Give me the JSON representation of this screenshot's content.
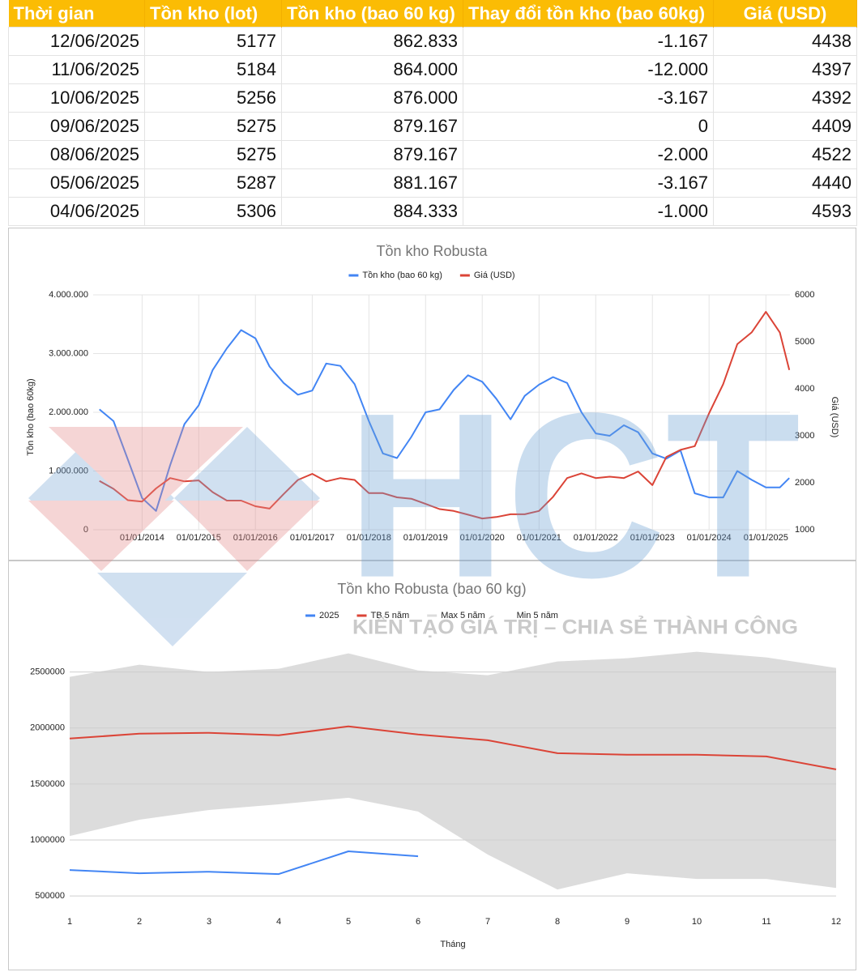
{
  "table": {
    "columns": [
      "Thời gian",
      "Tồn kho (lot)",
      "Tồn kho (bao 60 kg)",
      "Thay đổi tồn kho (bao 60kg)",
      "Giá (USD)"
    ],
    "rows": [
      [
        "12/06/2025",
        "5177",
        "862.833",
        "-1.167",
        "4438"
      ],
      [
        "11/06/2025",
        "5184",
        "864.000",
        "-12.000",
        "4397"
      ],
      [
        "10/06/2025",
        "5256",
        "876.000",
        "-3.167",
        "4392"
      ],
      [
        "09/06/2025",
        "5275",
        "879.167",
        "0",
        "4409"
      ],
      [
        "08/06/2025",
        "5275",
        "879.167",
        "-2.000",
        "4522"
      ],
      [
        "05/06/2025",
        "5287",
        "881.167",
        "-3.167",
        "4440"
      ],
      [
        "04/06/2025",
        "5306",
        "884.333",
        "-1.000",
        "4593"
      ]
    ]
  },
  "chart_data": [
    {
      "type": "line",
      "title": "Tồn kho Robusta",
      "ylabel": "Tồn kho (bao 60kg)",
      "y2label": "Giá (USD)",
      "x": [
        "01/04/2013",
        "01/07/2013",
        "01/10/2013",
        "01/01/2014",
        "01/04/2014",
        "01/07/2014",
        "01/10/2014",
        "01/01/2015",
        "01/04/2015",
        "01/07/2015",
        "01/10/2015",
        "01/01/2016",
        "01/04/2016",
        "01/07/2016",
        "01/10/2016",
        "01/01/2017",
        "01/04/2017",
        "01/07/2017",
        "01/10/2017",
        "01/01/2018",
        "01/04/2018",
        "01/07/2018",
        "01/10/2018",
        "01/01/2019",
        "01/04/2019",
        "01/07/2019",
        "01/10/2019",
        "01/01/2020",
        "01/04/2020",
        "01/07/2020",
        "01/10/2020",
        "01/01/2021",
        "01/04/2021",
        "01/07/2021",
        "01/10/2021",
        "01/01/2022",
        "01/04/2022",
        "01/07/2022",
        "01/10/2022",
        "01/01/2023",
        "01/04/2023",
        "01/07/2023",
        "01/10/2023",
        "01/01/2024",
        "01/04/2024",
        "01/07/2024",
        "01/10/2024",
        "01/01/2025",
        "01/04/2025",
        "01/06/2025"
      ],
      "series": [
        {
          "name": "Tồn kho (bao 60 kg)",
          "color": "#4285f4",
          "values": [
            2050000,
            1850000,
            1200000,
            540000,
            320000,
            1100000,
            1800000,
            2120000,
            2720000,
            3090000,
            3400000,
            3260000,
            2780000,
            2500000,
            2300000,
            2370000,
            2830000,
            2790000,
            2480000,
            1850000,
            1300000,
            1220000,
            1580000,
            2000000,
            2050000,
            2380000,
            2630000,
            2520000,
            2230000,
            1880000,
            2280000,
            2470000,
            2600000,
            2500000,
            2000000,
            1640000,
            1600000,
            1780000,
            1660000,
            1300000,
            1210000,
            1350000,
            620000,
            550000,
            550000,
            1000000,
            850000,
            720000,
            720000,
            880000
          ]
        },
        {
          "name": "Giá (USD)",
          "color": "#db4437",
          "axis": "y2",
          "values": [
            2040,
            1870,
            1630,
            1600,
            1880,
            2100,
            2030,
            2050,
            1800,
            1620,
            1620,
            1500,
            1450,
            1760,
            2060,
            2190,
            2030,
            2100,
            2060,
            1780,
            1780,
            1690,
            1660,
            1550,
            1440,
            1400,
            1320,
            1240,
            1270,
            1330,
            1330,
            1400,
            1700,
            2100,
            2200,
            2100,
            2130,
            2100,
            2240,
            1950,
            2550,
            2700,
            2780,
            3480,
            4100,
            4950,
            5200,
            5640,
            5200,
            4400
          ]
        }
      ],
      "xlim": [
        "20/02/2013",
        "05/06/2025"
      ],
      "xticks": [
        "01/01/2014",
        "01/01/2015",
        "01/01/2016",
        "01/01/2017",
        "01/01/2018",
        "01/01/2019",
        "01/01/2020",
        "01/01/2021",
        "01/01/2022",
        "01/01/2023",
        "01/01/2024",
        "01/01/2025"
      ],
      "ylim": [
        0,
        4000000
      ],
      "yticks": [
        0,
        {
          "value": 1000000,
          "label": "1.000.000"
        },
        {
          "value": 2000000,
          "label": "2.000.000"
        },
        {
          "value": 3000000,
          "label": "3.000.000"
        },
        {
          "value": 4000000,
          "label": "4.000.000"
        }
      ],
      "y2lim": [
        1000,
        6000
      ],
      "y2ticks": [
        1000,
        2000,
        3000,
        4000,
        5000,
        6000
      ],
      "grid": true,
      "legend": "top"
    },
    {
      "type": "line",
      "title": "Tồn kho Robusta (bao 60 kg)",
      "xlabel": "Tháng",
      "categories": [
        "1",
        "2",
        "3",
        "4",
        "5",
        "6",
        "7",
        "8",
        "9",
        "10",
        "11",
        "12"
      ],
      "series": [
        {
          "name": "2025",
          "color": "#4285f4",
          "values": [
            732000,
            703000,
            717000,
            696000,
            899000,
            855000,
            null,
            null,
            null,
            null,
            null,
            null
          ]
        },
        {
          "name": "TB 5 năm",
          "color": "#db4437",
          "values": [
            1906000,
            1949000,
            1957000,
            1935000,
            2014000,
            1942000,
            1891000,
            1775000,
            1761000,
            1761000,
            1746000,
            1630000
          ]
        },
        {
          "name": "Max 5 năm",
          "color": "#dcdcdc",
          "area": true,
          "values": [
            2457000,
            2565000,
            2500000,
            2529000,
            2667000,
            2514000,
            2471000,
            2594000,
            2623000,
            2681000,
            2630000,
            2536000
          ]
        },
        {
          "name": "Min 5 năm",
          "color": "#ffffff",
          "area": true,
          "values": [
            1036000,
            1181000,
            1268000,
            1319000,
            1377000,
            1254000,
            870000,
            558000,
            703000,
            652000,
            652000,
            572000
          ]
        }
      ],
      "ylim": [
        400000,
        2700000
      ],
      "yticks": [
        500000,
        1000000,
        1500000,
        2000000,
        2500000
      ],
      "grid": true,
      "legend": "top"
    }
  ],
  "watermark": {
    "brand": "HCT",
    "slogan": "KIẾN TẠO GIÁ TRỊ – CHIA SẺ THÀNH CÔNG"
  }
}
